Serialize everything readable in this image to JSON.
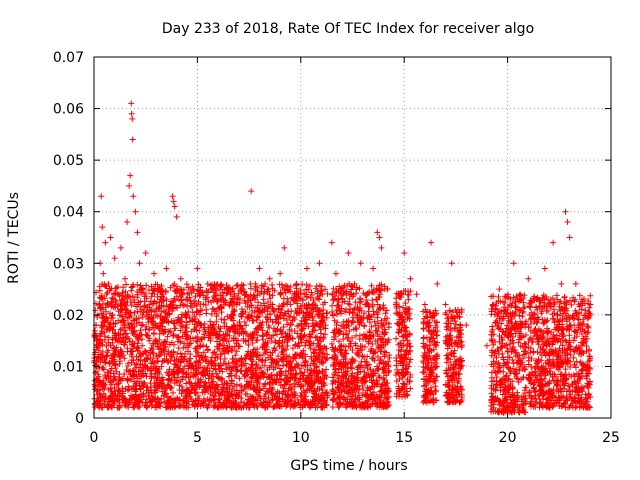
{
  "chart_data": {
    "type": "scatter",
    "title": "Day 233 of 2018, Rate Of TEC Index for receiver algo",
    "xlabel": "GPS time / hours",
    "ylabel": "ROTI / TECUs",
    "xlim": [
      0,
      25
    ],
    "ylim": [
      0,
      0.07
    ],
    "xticks": [
      "0",
      "5",
      "10",
      "15",
      "20",
      "25"
    ],
    "yticks": [
      "0",
      "0.01",
      "0.02",
      "0.03",
      "0.04",
      "0.05",
      "0.06",
      "0.07"
    ],
    "grid": true,
    "marker": "+",
    "color": "#ff0000",
    "series": [
      {
        "points": [
          [
            0.1,
            0.009
          ],
          [
            0.2,
            0.014
          ],
          [
            0.25,
            0.022
          ],
          [
            0.3,
            0.03
          ],
          [
            0.35,
            0.043
          ],
          [
            0.4,
            0.037
          ],
          [
            0.45,
            0.028
          ],
          [
            0.5,
            0.018
          ],
          [
            0.55,
            0.034
          ],
          [
            0.6,
            0.012
          ],
          [
            0.7,
            0.026
          ],
          [
            0.8,
            0.035
          ],
          [
            0.9,
            0.02
          ],
          [
            1.0,
            0.031
          ],
          [
            1.1,
            0.016
          ],
          [
            1.2,
            0.024
          ],
          [
            1.3,
            0.033
          ],
          [
            1.4,
            0.019
          ],
          [
            1.5,
            0.027
          ],
          [
            1.6,
            0.038
          ],
          [
            1.7,
            0.045
          ],
          [
            1.75,
            0.047
          ],
          [
            1.8,
            0.061
          ],
          [
            1.82,
            0.059
          ],
          [
            1.85,
            0.058
          ],
          [
            1.87,
            0.054
          ],
          [
            1.9,
            0.043
          ],
          [
            2.0,
            0.04
          ],
          [
            2.1,
            0.036
          ],
          [
            2.2,
            0.03
          ],
          [
            2.3,
            0.025
          ],
          [
            2.5,
            0.032
          ],
          [
            2.7,
            0.021
          ],
          [
            2.9,
            0.028
          ],
          [
            3.1,
            0.018
          ],
          [
            3.3,
            0.024
          ],
          [
            3.5,
            0.029
          ],
          [
            3.7,
            0.022
          ],
          [
            3.8,
            0.043
          ],
          [
            3.85,
            0.042
          ],
          [
            3.9,
            0.041
          ],
          [
            4.0,
            0.039
          ],
          [
            4.2,
            0.027
          ],
          [
            4.5,
            0.02
          ],
          [
            4.8,
            0.025
          ],
          [
            5.0,
            0.029
          ],
          [
            5.2,
            0.018
          ],
          [
            5.5,
            0.026
          ],
          [
            5.8,
            0.021
          ],
          [
            6.0,
            0.023
          ],
          [
            6.3,
            0.019
          ],
          [
            6.6,
            0.024
          ],
          [
            6.9,
            0.022
          ],
          [
            7.2,
            0.025
          ],
          [
            7.5,
            0.02
          ],
          [
            7.6,
            0.044
          ],
          [
            7.8,
            0.026
          ],
          [
            8.0,
            0.029
          ],
          [
            8.2,
            0.023
          ],
          [
            8.5,
            0.027
          ],
          [
            8.7,
            0.021
          ],
          [
            9.0,
            0.028
          ],
          [
            9.2,
            0.033
          ],
          [
            9.5,
            0.022
          ],
          [
            9.8,
            0.026
          ],
          [
            10.0,
            0.024
          ],
          [
            10.3,
            0.029
          ],
          [
            10.6,
            0.021
          ],
          [
            10.9,
            0.03
          ],
          [
            11.2,
            0.018
          ],
          [
            11.5,
            0.034
          ],
          [
            11.7,
            0.028
          ],
          [
            12.0,
            0.023
          ],
          [
            12.3,
            0.032
          ],
          [
            12.6,
            0.026
          ],
          [
            12.9,
            0.03
          ],
          [
            13.2,
            0.024
          ],
          [
            13.5,
            0.029
          ],
          [
            13.7,
            0.036
          ],
          [
            13.8,
            0.035
          ],
          [
            13.9,
            0.033
          ],
          [
            14.2,
            0.025
          ],
          [
            14.6,
            0.022
          ],
          [
            15.0,
            0.032
          ],
          [
            15.3,
            0.027
          ],
          [
            15.6,
            0.024
          ],
          [
            16.0,
            0.022
          ],
          [
            16.3,
            0.034
          ],
          [
            16.6,
            0.026
          ],
          [
            17.0,
            0.022
          ],
          [
            17.3,
            0.03
          ],
          [
            17.6,
            0.021
          ],
          [
            18.0,
            0.018
          ],
          [
            19.0,
            0.014
          ],
          [
            19.3,
            0.022
          ],
          [
            19.6,
            0.025
          ],
          [
            20.0,
            0.021
          ],
          [
            20.3,
            0.03
          ],
          [
            20.6,
            0.024
          ],
          [
            21.0,
            0.027
          ],
          [
            21.4,
            0.023
          ],
          [
            21.8,
            0.029
          ],
          [
            22.2,
            0.034
          ],
          [
            22.6,
            0.026
          ],
          [
            22.8,
            0.04
          ],
          [
            22.9,
            0.038
          ],
          [
            23.0,
            0.035
          ],
          [
            23.3,
            0.026
          ],
          [
            23.6,
            0.023
          ],
          [
            24.0,
            0.022
          ]
        ]
      }
    ],
    "clusters": [
      [
        0.0,
        11.3,
        0.002,
        0.026
      ],
      [
        11.5,
        14.3,
        0.002,
        0.026
      ],
      [
        14.6,
        15.3,
        0.004,
        0.025
      ],
      [
        15.9,
        16.6,
        0.003,
        0.021
      ],
      [
        17.0,
        17.8,
        0.003,
        0.021
      ],
      [
        19.2,
        20.9,
        0.001,
        0.024
      ],
      [
        21.0,
        24.0,
        0.002,
        0.024
      ]
    ]
  }
}
